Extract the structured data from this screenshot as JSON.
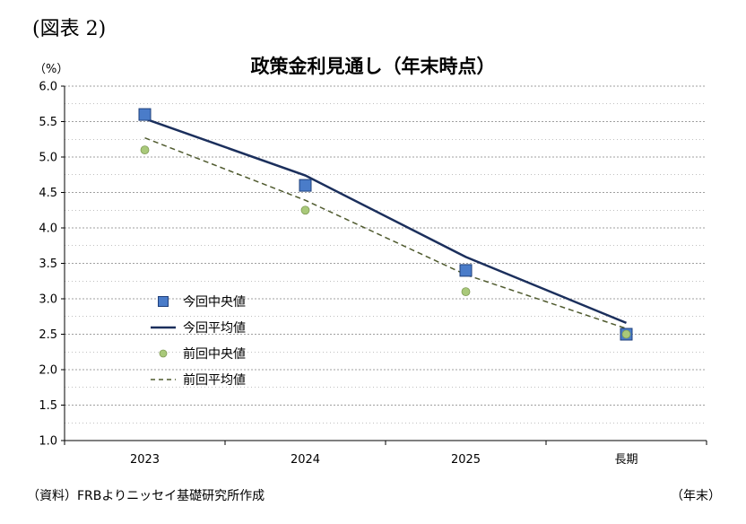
{
  "figure_label": "(図表 2)",
  "source_note": "（資料）FRBよりニッセイ基礎研究所作成",
  "colors": {
    "current_median": "#4a7cc9",
    "current_median_border": "#1f3f7a",
    "current_mean": "#1b2f5c",
    "previous_median": "#a9c97a",
    "previous_mean": "#4f5a2e",
    "grid": "#808080"
  },
  "chart_data": {
    "type": "line",
    "title": "政策金利見通し（年末時点）",
    "ylabel": "（%）",
    "xlabel": "（年末）",
    "categories": [
      "2023",
      "2024",
      "2025",
      "長期"
    ],
    "ylim": [
      1.0,
      6.0
    ],
    "yticks": [
      "1.0",
      "1.5",
      "2.0",
      "2.5",
      "3.0",
      "3.5",
      "4.0",
      "4.5",
      "5.0",
      "5.5",
      "6.0"
    ],
    "grid": true,
    "legend_position": "left-middle",
    "series": [
      {
        "name": "今回中央値",
        "style": "square-marker",
        "values": [
          5.6,
          4.6,
          3.4,
          2.5
        ]
      },
      {
        "name": "今回平均値",
        "style": "solid-line",
        "values": [
          5.54,
          4.74,
          3.59,
          2.66
        ]
      },
      {
        "name": "前回中央値",
        "style": "circle-marker",
        "values": [
          5.1,
          4.25,
          3.1,
          2.5
        ]
      },
      {
        "name": "前回平均値",
        "style": "dashed-line",
        "values": [
          5.27,
          4.39,
          3.34,
          2.58
        ]
      }
    ]
  }
}
